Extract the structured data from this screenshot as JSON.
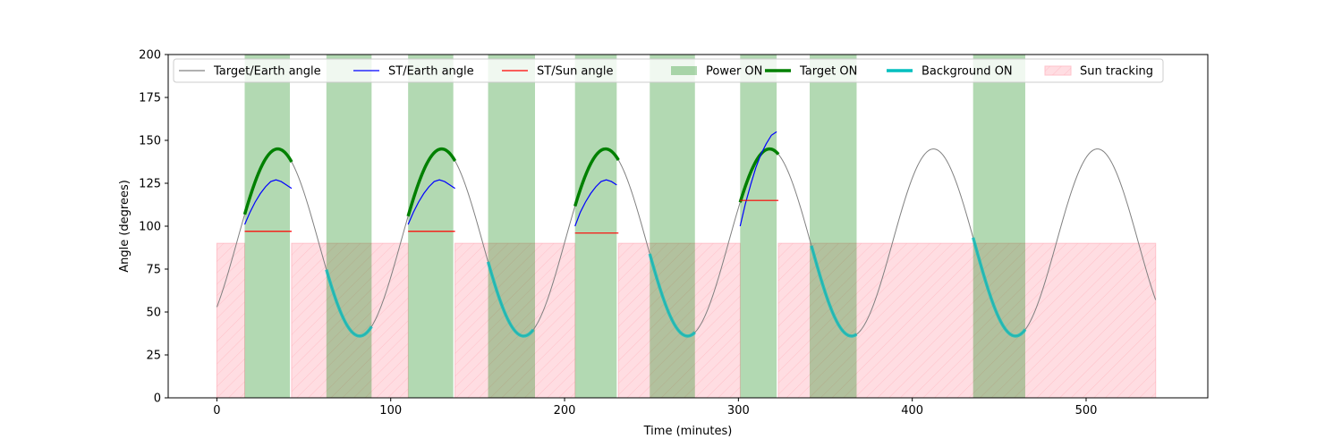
{
  "chart_data": {
    "type": "line",
    "title": "",
    "xlabel": "Time (minutes)",
    "ylabel": "Angle (degrees)",
    "xlim": [
      -28,
      570
    ],
    "ylim": [
      0,
      200
    ],
    "xticks": [
      0,
      100,
      200,
      300,
      400,
      500
    ],
    "yticks": [
      0,
      25,
      50,
      75,
      100,
      125,
      150,
      175,
      200
    ],
    "grid": false,
    "legend_position": "top",
    "legend": [
      {
        "label": "Target/Earth angle",
        "kind": "line",
        "color": "#808080"
      },
      {
        "label": "ST/Earth angle",
        "kind": "line",
        "color": "#0000ff"
      },
      {
        "label": "ST/Sun angle",
        "kind": "line",
        "color": "#ff0000"
      },
      {
        "label": "Power ON",
        "kind": "patch",
        "color": "#b3d9b3"
      },
      {
        "label": "Target ON",
        "kind": "thickline",
        "color": "#008000"
      },
      {
        "label": "Background ON",
        "kind": "thickline",
        "color": "#00bfbf"
      },
      {
        "label": "Sun tracking",
        "kind": "hatch",
        "color": "#ffdde2"
      }
    ],
    "target_earth_curve": {
      "type": "sinusoid",
      "mean": 90.5,
      "amplitude": 54.5,
      "period": 94.3,
      "peak_time": 35,
      "t_range": [
        0,
        540
      ]
    },
    "power_on_intervals": [
      [
        16,
        42
      ],
      [
        63,
        89
      ],
      [
        110,
        136
      ],
      [
        156,
        183
      ],
      [
        206,
        230
      ],
      [
        249,
        275
      ],
      [
        301,
        322
      ],
      [
        341,
        368
      ],
      [
        435,
        465
      ]
    ],
    "target_on_intervals": [
      [
        16,
        43
      ],
      [
        110,
        137
      ],
      [
        206,
        231
      ],
      [
        301,
        323
      ]
    ],
    "background_on_intervals": [
      [
        63,
        89
      ],
      [
        156,
        182
      ],
      [
        249,
        275
      ],
      [
        342,
        368
      ],
      [
        435,
        465
      ]
    ],
    "sun_tracking_level": 90,
    "sun_tracking_intervals": [
      [
        0,
        16
      ],
      [
        43,
        110
      ],
      [
        137,
        206
      ],
      [
        231,
        301
      ],
      [
        323,
        540
      ]
    ],
    "st_earth_segments": [
      {
        "x": [
          16,
          19,
          22,
          25,
          28,
          31,
          34,
          37,
          40,
          43
        ],
        "y": [
          101,
          108,
          114,
          119,
          123,
          126,
          127,
          126,
          124,
          122
        ]
      },
      {
        "x": [
          110,
          113,
          116,
          119,
          122,
          125,
          128,
          131,
          134,
          137
        ],
        "y": [
          101,
          108,
          114,
          119,
          123,
          126,
          127,
          126,
          124,
          122
        ]
      },
      {
        "x": [
          206,
          209,
          212,
          215,
          218,
          221,
          224,
          227,
          230
        ],
        "y": [
          100,
          108,
          114,
          119,
          123,
          126,
          127,
          126,
          124
        ]
      },
      {
        "x": [
          301,
          304,
          307,
          310,
          313,
          316,
          319,
          322
        ],
        "y": [
          100,
          113,
          124,
          134,
          142,
          148,
          153,
          155
        ]
      }
    ],
    "st_sun_segments": [
      {
        "x": [
          16,
          43
        ],
        "y": [
          97,
          97
        ]
      },
      {
        "x": [
          110,
          137
        ],
        "y": [
          97,
          97
        ]
      },
      {
        "x": [
          206,
          231
        ],
        "y": [
          96,
          96
        ]
      },
      {
        "x": [
          301,
          323
        ],
        "y": [
          115,
          115
        ]
      }
    ]
  }
}
